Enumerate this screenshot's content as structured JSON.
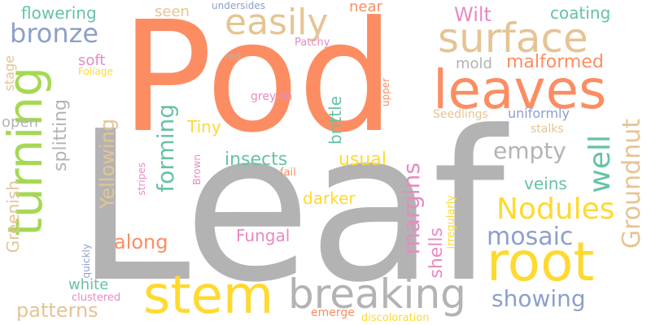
{
  "palette": {
    "orange": "#fc8d62",
    "gray": "#b3b3b3",
    "green": "#a6d854",
    "blue": "#8da0cb",
    "tan": "#e5c494",
    "yellow": "#ffd92f",
    "teal": "#66c2a5",
    "pink": "#e78ac3"
  },
  "words": [
    {
      "id": "leaf",
      "text": "Leaf"
    },
    {
      "id": "pod",
      "text": "Pod"
    },
    {
      "id": "turning",
      "text": "turning"
    },
    {
      "id": "leaves",
      "text": "leaves"
    },
    {
      "id": "surface",
      "text": "surface"
    },
    {
      "id": "root",
      "text": "root"
    },
    {
      "id": "stem",
      "text": "stem"
    },
    {
      "id": "breaking",
      "text": "breaking"
    },
    {
      "id": "easily",
      "text": "easily"
    },
    {
      "id": "bronze",
      "text": "bronze"
    },
    {
      "id": "flowering",
      "text": "flowering"
    },
    {
      "id": "seen",
      "text": "seen"
    },
    {
      "id": "near",
      "text": "near"
    },
    {
      "id": "wilt",
      "text": "Wilt"
    },
    {
      "id": "coating",
      "text": "coating"
    },
    {
      "id": "undersides",
      "text": "undersides"
    },
    {
      "id": "patchy",
      "text": "Patchy"
    },
    {
      "id": "soft",
      "text": "soft"
    },
    {
      "id": "foliage",
      "text": "Foliage"
    },
    {
      "id": "red",
      "text": "red"
    },
    {
      "id": "mold",
      "text": "mold"
    },
    {
      "id": "malformed",
      "text": "malformed"
    },
    {
      "id": "stage",
      "text": "stage"
    },
    {
      "id": "open",
      "text": "open"
    },
    {
      "id": "greyish",
      "text": "greyish"
    },
    {
      "id": "upper",
      "text": "upper"
    },
    {
      "id": "brittle",
      "text": "brittle"
    },
    {
      "id": "uniformly",
      "text": "uniformly"
    },
    {
      "id": "seedlings",
      "text": "Seedlings"
    },
    {
      "id": "splitting",
      "text": "splitting"
    },
    {
      "id": "yellowing",
      "text": "Yellowing"
    },
    {
      "id": "tiny",
      "text": "Tiny"
    },
    {
      "id": "stalks",
      "text": "stalks"
    },
    {
      "id": "empty",
      "text": "empty"
    },
    {
      "id": "well",
      "text": "well"
    },
    {
      "id": "groundnut",
      "text": "Groundnut"
    },
    {
      "id": "forming",
      "text": "forming"
    },
    {
      "id": "insects",
      "text": "insects"
    },
    {
      "id": "usual",
      "text": "usual"
    },
    {
      "id": "stripes",
      "text": "stripes"
    },
    {
      "id": "brown",
      "text": "Brown"
    },
    {
      "id": "fail",
      "text": "fail"
    },
    {
      "id": "veins",
      "text": "veins"
    },
    {
      "id": "greenish",
      "text": "Greenish"
    },
    {
      "id": "margins",
      "text": "margins"
    },
    {
      "id": "darker",
      "text": "darker"
    },
    {
      "id": "nodules",
      "text": "Nodules"
    },
    {
      "id": "mosaic",
      "text": "mosaic"
    },
    {
      "id": "along",
      "text": "along"
    },
    {
      "id": "fungal",
      "text": "Fungal"
    },
    {
      "id": "quickly",
      "text": "quickly"
    },
    {
      "id": "shells",
      "text": "shells"
    },
    {
      "id": "irregularly",
      "text": "irregularly"
    },
    {
      "id": "white",
      "text": "white"
    },
    {
      "id": "clustered",
      "text": "clustered"
    },
    {
      "id": "showing",
      "text": "showing"
    },
    {
      "id": "patterns",
      "text": "patterns"
    },
    {
      "id": "emerge",
      "text": "emerge"
    },
    {
      "id": "discoloration",
      "text": "discoloration"
    }
  ]
}
